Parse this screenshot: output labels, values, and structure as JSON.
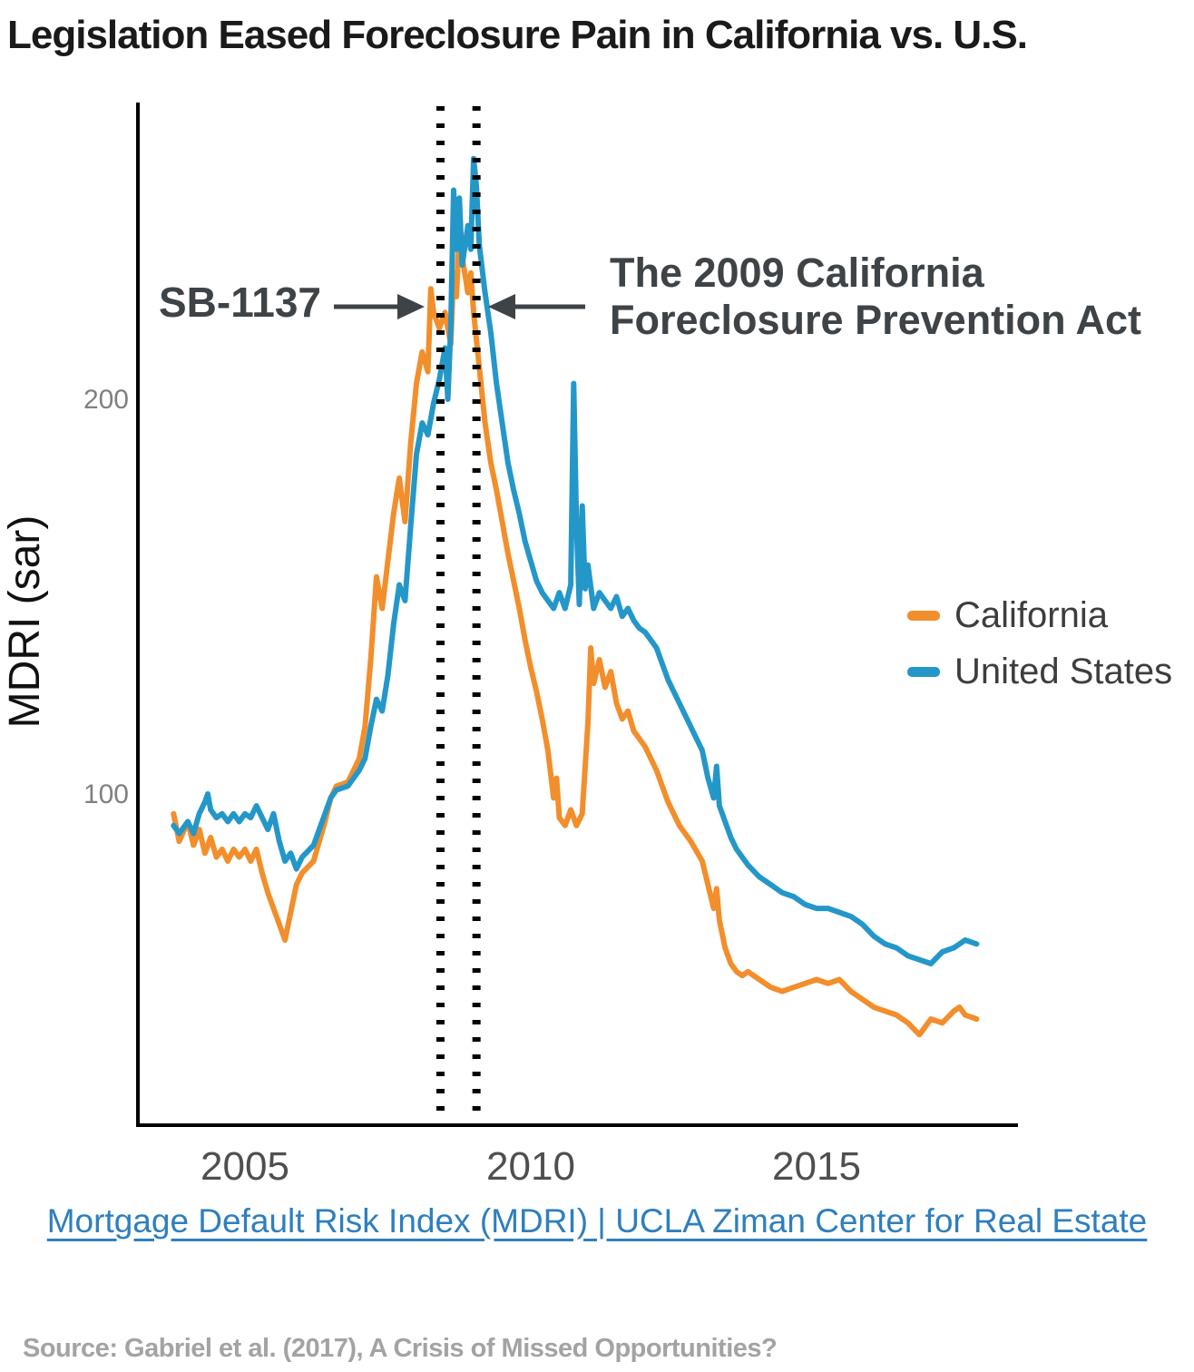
{
  "title": "Legislation Eased Foreclosure Pain in California vs. U.S.",
  "annotations": {
    "sb1137": "SB-1137",
    "cfpa_line1": "The 2009 California",
    "cfpa_line2": "Foreclosure Prevention Act"
  },
  "legend": {
    "items": [
      {
        "label": "California",
        "color": "#f28e2b"
      },
      {
        "label": "United States",
        "color": "#2497c9"
      }
    ]
  },
  "axis": {
    "yticks": [
      "100",
      "200"
    ],
    "xticks": [
      "2005",
      "2010",
      "2015"
    ]
  },
  "caption": "Mortgage Default Risk Index (MDRI) | UCLA Ziman Center for Real Estate",
  "source": "Source: Gabriel et al. (2017), A Crisis of Missed Opportunities?",
  "chart_data": {
    "type": "line",
    "title": "Legislation Eased Foreclosure Pain in California vs. U.S.",
    "xlabel": "",
    "ylabel": "MDRI (sar)",
    "xlim": [
      2003.6,
      2018.4
    ],
    "ylim": [
      15,
      275
    ],
    "xticks": [
      2005,
      2010,
      2015
    ],
    "yticks": [
      100,
      200
    ],
    "grid": false,
    "legend_position": "right",
    "events": [
      {
        "label": "SB-1137",
        "x": 2008.42,
        "style": "dotted-vertical"
      },
      {
        "label": "The 2009 California Foreclosure Prevention Act",
        "x": 2009.05,
        "style": "dotted-vertical"
      }
    ],
    "series": [
      {
        "name": "California",
        "color": "#f28e2b",
        "points": [
          [
            2003.75,
            95
          ],
          [
            2003.85,
            88
          ],
          [
            2004.0,
            93
          ],
          [
            2004.1,
            87
          ],
          [
            2004.2,
            91
          ],
          [
            2004.3,
            85
          ],
          [
            2004.4,
            89
          ],
          [
            2004.5,
            84
          ],
          [
            2004.6,
            86
          ],
          [
            2004.7,
            83
          ],
          [
            2004.8,
            86
          ],
          [
            2004.9,
            84
          ],
          [
            2005.0,
            86
          ],
          [
            2005.1,
            83
          ],
          [
            2005.2,
            86
          ],
          [
            2005.3,
            80
          ],
          [
            2005.4,
            75
          ],
          [
            2005.5,
            71
          ],
          [
            2005.6,
            67
          ],
          [
            2005.7,
            63
          ],
          [
            2005.8,
            70
          ],
          [
            2005.9,
            77
          ],
          [
            2006.0,
            80
          ],
          [
            2006.2,
            83
          ],
          [
            2006.4,
            93
          ],
          [
            2006.5,
            99
          ],
          [
            2006.6,
            102
          ],
          [
            2006.8,
            103
          ],
          [
            2007.0,
            109
          ],
          [
            2007.1,
            117
          ],
          [
            2007.2,
            134
          ],
          [
            2007.3,
            155
          ],
          [
            2007.4,
            147
          ],
          [
            2007.5,
            159
          ],
          [
            2007.6,
            171
          ],
          [
            2007.7,
            180
          ],
          [
            2007.8,
            169
          ],
          [
            2007.9,
            189
          ],
          [
            2008.0,
            204
          ],
          [
            2008.1,
            212
          ],
          [
            2008.2,
            207
          ],
          [
            2008.25,
            228
          ],
          [
            2008.3,
            222
          ],
          [
            2008.4,
            218
          ],
          [
            2008.5,
            222
          ],
          [
            2008.6,
            214
          ],
          [
            2008.65,
            232
          ],
          [
            2008.7,
            226
          ],
          [
            2008.75,
            243
          ],
          [
            2008.8,
            236
          ],
          [
            2008.9,
            227
          ],
          [
            2008.95,
            232
          ],
          [
            2009.0,
            222
          ],
          [
            2009.1,
            208
          ],
          [
            2009.2,
            194
          ],
          [
            2009.3,
            184
          ],
          [
            2009.4,
            177
          ],
          [
            2009.5,
            169
          ],
          [
            2009.6,
            161
          ],
          [
            2009.7,
            154
          ],
          [
            2009.8,
            147
          ],
          [
            2009.9,
            139
          ],
          [
            2010.0,
            132
          ],
          [
            2010.1,
            126
          ],
          [
            2010.2,
            119
          ],
          [
            2010.3,
            111
          ],
          [
            2010.4,
            99
          ],
          [
            2010.45,
            104
          ],
          [
            2010.5,
            94
          ],
          [
            2010.6,
            92
          ],
          [
            2010.7,
            96
          ],
          [
            2010.8,
            92
          ],
          [
            2010.9,
            95
          ],
          [
            2011.0,
            118
          ],
          [
            2011.05,
            137
          ],
          [
            2011.1,
            128
          ],
          [
            2011.2,
            134
          ],
          [
            2011.3,
            127
          ],
          [
            2011.4,
            131
          ],
          [
            2011.5,
            123
          ],
          [
            2011.6,
            119
          ],
          [
            2011.7,
            121
          ],
          [
            2011.8,
            116
          ],
          [
            2011.9,
            114
          ],
          [
            2012.0,
            112
          ],
          [
            2012.2,
            106
          ],
          [
            2012.4,
            98
          ],
          [
            2012.6,
            92
          ],
          [
            2012.8,
            88
          ],
          [
            2013.0,
            83
          ],
          [
            2013.1,
            77
          ],
          [
            2013.2,
            71
          ],
          [
            2013.25,
            76
          ],
          [
            2013.3,
            68
          ],
          [
            2013.4,
            61
          ],
          [
            2013.5,
            57
          ],
          [
            2013.6,
            55
          ],
          [
            2013.7,
            54
          ],
          [
            2013.8,
            55
          ],
          [
            2014.0,
            53
          ],
          [
            2014.2,
            51
          ],
          [
            2014.4,
            50
          ],
          [
            2014.6,
            51
          ],
          [
            2014.8,
            52
          ],
          [
            2015.0,
            53
          ],
          [
            2015.2,
            52
          ],
          [
            2015.4,
            53
          ],
          [
            2015.6,
            50
          ],
          [
            2015.8,
            48
          ],
          [
            2016.0,
            46
          ],
          [
            2016.2,
            45
          ],
          [
            2016.4,
            44
          ],
          [
            2016.6,
            42
          ],
          [
            2016.8,
            39
          ],
          [
            2017.0,
            43
          ],
          [
            2017.2,
            42
          ],
          [
            2017.4,
            45
          ],
          [
            2017.5,
            46
          ],
          [
            2017.6,
            44
          ],
          [
            2017.8,
            43
          ]
        ]
      },
      {
        "name": "United States",
        "color": "#2497c9",
        "points": [
          [
            2003.75,
            92
          ],
          [
            2003.85,
            90
          ],
          [
            2004.0,
            93
          ],
          [
            2004.1,
            90
          ],
          [
            2004.2,
            95
          ],
          [
            2004.3,
            98
          ],
          [
            2004.35,
            100
          ],
          [
            2004.4,
            96
          ],
          [
            2004.5,
            94
          ],
          [
            2004.6,
            95
          ],
          [
            2004.7,
            93
          ],
          [
            2004.8,
            95
          ],
          [
            2004.9,
            93
          ],
          [
            2005.0,
            95
          ],
          [
            2005.1,
            94
          ],
          [
            2005.2,
            97
          ],
          [
            2005.3,
            94
          ],
          [
            2005.4,
            91
          ],
          [
            2005.5,
            95
          ],
          [
            2005.6,
            88
          ],
          [
            2005.7,
            83
          ],
          [
            2005.8,
            85
          ],
          [
            2005.9,
            81
          ],
          [
            2006.0,
            84
          ],
          [
            2006.2,
            87
          ],
          [
            2006.4,
            95
          ],
          [
            2006.5,
            99
          ],
          [
            2006.6,
            101
          ],
          [
            2006.8,
            102
          ],
          [
            2007.0,
            106
          ],
          [
            2007.1,
            109
          ],
          [
            2007.2,
            117
          ],
          [
            2007.3,
            124
          ],
          [
            2007.4,
            121
          ],
          [
            2007.5,
            130
          ],
          [
            2007.6,
            143
          ],
          [
            2007.7,
            153
          ],
          [
            2007.8,
            149
          ],
          [
            2007.9,
            168
          ],
          [
            2008.0,
            186
          ],
          [
            2008.1,
            194
          ],
          [
            2008.2,
            191
          ],
          [
            2008.3,
            199
          ],
          [
            2008.4,
            205
          ],
          [
            2008.5,
            213
          ],
          [
            2008.55,
            200
          ],
          [
            2008.6,
            218
          ],
          [
            2008.65,
            253
          ],
          [
            2008.7,
            238
          ],
          [
            2008.75,
            251
          ],
          [
            2008.8,
            234
          ],
          [
            2008.9,
            244
          ],
          [
            2008.95,
            238
          ],
          [
            2009.0,
            261
          ],
          [
            2009.05,
            254
          ],
          [
            2009.1,
            239
          ],
          [
            2009.2,
            227
          ],
          [
            2009.3,
            217
          ],
          [
            2009.4,
            204
          ],
          [
            2009.5,
            194
          ],
          [
            2009.6,
            184
          ],
          [
            2009.7,
            177
          ],
          [
            2009.8,
            171
          ],
          [
            2009.9,
            164
          ],
          [
            2010.0,
            159
          ],
          [
            2010.1,
            154
          ],
          [
            2010.2,
            151
          ],
          [
            2010.3,
            149
          ],
          [
            2010.4,
            147
          ],
          [
            2010.5,
            151
          ],
          [
            2010.6,
            147
          ],
          [
            2010.7,
            153
          ],
          [
            2010.75,
            204
          ],
          [
            2010.8,
            168
          ],
          [
            2010.85,
            148
          ],
          [
            2010.9,
            173
          ],
          [
            2010.95,
            152
          ],
          [
            2011.0,
            158
          ],
          [
            2011.1,
            147
          ],
          [
            2011.2,
            151
          ],
          [
            2011.3,
            149
          ],
          [
            2011.4,
            147
          ],
          [
            2011.5,
            150
          ],
          [
            2011.6,
            145
          ],
          [
            2011.7,
            147
          ],
          [
            2011.8,
            144
          ],
          [
            2011.9,
            142
          ],
          [
            2012.0,
            141
          ],
          [
            2012.2,
            137
          ],
          [
            2012.4,
            129
          ],
          [
            2012.6,
            123
          ],
          [
            2012.8,
            117
          ],
          [
            2013.0,
            111
          ],
          [
            2013.1,
            104
          ],
          [
            2013.2,
            99
          ],
          [
            2013.25,
            107
          ],
          [
            2013.3,
            97
          ],
          [
            2013.4,
            93
          ],
          [
            2013.5,
            89
          ],
          [
            2013.6,
            86
          ],
          [
            2013.7,
            84
          ],
          [
            2013.8,
            82
          ],
          [
            2014.0,
            79
          ],
          [
            2014.2,
            77
          ],
          [
            2014.4,
            75
          ],
          [
            2014.6,
            74
          ],
          [
            2014.8,
            72
          ],
          [
            2015.0,
            71
          ],
          [
            2015.2,
            71
          ],
          [
            2015.4,
            70
          ],
          [
            2015.6,
            69
          ],
          [
            2015.8,
            67
          ],
          [
            2016.0,
            64
          ],
          [
            2016.2,
            62
          ],
          [
            2016.4,
            61
          ],
          [
            2016.6,
            59
          ],
          [
            2016.8,
            58
          ],
          [
            2017.0,
            57
          ],
          [
            2017.2,
            60
          ],
          [
            2017.4,
            61
          ],
          [
            2017.5,
            62
          ],
          [
            2017.6,
            63
          ],
          [
            2017.8,
            62
          ]
        ]
      }
    ]
  }
}
